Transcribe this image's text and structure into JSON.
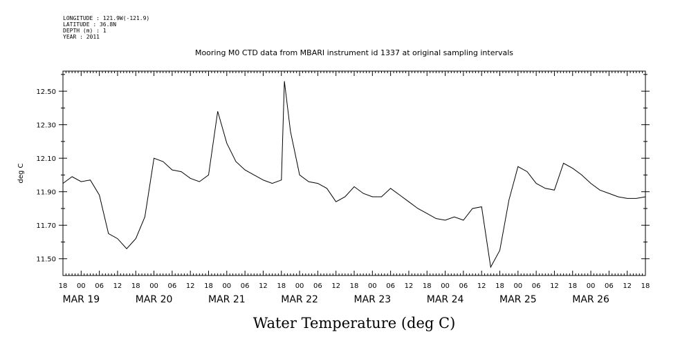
{
  "header": {
    "longitude": "LONGITUDE : 121.9W(-121.9)",
    "latitude": "LATITUDE : 36.8N",
    "depth": "DEPTH (m) : 1",
    "year": "YEAR : 2011"
  },
  "colors": {
    "line": "#000000",
    "background": "#ffffff"
  },
  "chart_data": {
    "type": "line",
    "title": "Mooring M0 CTD data from MBARI instrument id 1337 at original sampling intervals",
    "xlabel": "Water Temperature (deg C)",
    "ylabel": "deg C",
    "ylim": [
      11.4,
      12.62
    ],
    "xlim": [
      "2011-03-18T18:00",
      "2011-03-26T18:00"
    ],
    "y_ticks": [
      "11.50",
      "11.70",
      "11.90",
      "12.10",
      "12.30",
      "12.50"
    ],
    "x_tick_hours": [
      "18",
      "00",
      "06",
      "12",
      "18",
      "00",
      "06",
      "12",
      "18",
      "00",
      "06",
      "12",
      "18",
      "00",
      "06",
      "12",
      "18",
      "00",
      "06",
      "12",
      "18",
      "00",
      "06",
      "12",
      "18",
      "00",
      "06",
      "12",
      "18",
      "00",
      "06",
      "12",
      "18"
    ],
    "x_day_labels": [
      "MAR 19",
      "MAR 20",
      "MAR 21",
      "MAR 22",
      "MAR 23",
      "MAR 24",
      "MAR 25",
      "MAR 26"
    ],
    "grid": false,
    "series": [
      {
        "name": "",
        "x": [
          "2011-03-18T18:00",
          "2011-03-18T21:00",
          "2011-03-19T00:00",
          "2011-03-19T03:00",
          "2011-03-19T06:00",
          "2011-03-19T09:00",
          "2011-03-19T12:00",
          "2011-03-19T15:00",
          "2011-03-19T18:00",
          "2011-03-19T21:00",
          "2011-03-20T00:00",
          "2011-03-20T03:00",
          "2011-03-20T06:00",
          "2011-03-20T09:00",
          "2011-03-20T12:00",
          "2011-03-20T15:00",
          "2011-03-20T18:00",
          "2011-03-20T21:00",
          "2011-03-21T00:00",
          "2011-03-21T03:00",
          "2011-03-21T06:00",
          "2011-03-21T09:00",
          "2011-03-21T12:00",
          "2011-03-21T15:00",
          "2011-03-21T18:00",
          "2011-03-21T19:00",
          "2011-03-21T21:00",
          "2011-03-22T00:00",
          "2011-03-22T03:00",
          "2011-03-22T06:00",
          "2011-03-22T09:00",
          "2011-03-22T12:00",
          "2011-03-22T15:00",
          "2011-03-22T18:00",
          "2011-03-22T21:00",
          "2011-03-23T00:00",
          "2011-03-23T03:00",
          "2011-03-23T06:00",
          "2011-03-23T09:00",
          "2011-03-23T12:00",
          "2011-03-23T15:00",
          "2011-03-23T18:00",
          "2011-03-23T21:00",
          "2011-03-24T00:00",
          "2011-03-24T03:00",
          "2011-03-24T06:00",
          "2011-03-24T09:00",
          "2011-03-24T12:00",
          "2011-03-24T15:00",
          "2011-03-24T18:00",
          "2011-03-24T21:00",
          "2011-03-25T00:00",
          "2011-03-25T03:00",
          "2011-03-25T06:00",
          "2011-03-25T09:00",
          "2011-03-25T12:00",
          "2011-03-25T15:00",
          "2011-03-25T18:00",
          "2011-03-25T21:00",
          "2011-03-26T00:00",
          "2011-03-26T03:00",
          "2011-03-26T06:00",
          "2011-03-26T09:00",
          "2011-03-26T12:00",
          "2011-03-26T15:00",
          "2011-03-26T18:00"
        ],
        "y": [
          11.95,
          11.99,
          11.96,
          11.97,
          11.88,
          11.65,
          11.62,
          11.56,
          11.62,
          11.75,
          12.1,
          12.08,
          12.03,
          12.02,
          11.98,
          11.96,
          12.0,
          12.38,
          12.19,
          12.08,
          12.03,
          12.0,
          11.97,
          11.95,
          11.97,
          12.56,
          12.26,
          12.0,
          11.96,
          11.95,
          11.92,
          11.84,
          11.87,
          11.93,
          11.89,
          11.87,
          11.87,
          11.92,
          11.88,
          11.84,
          11.8,
          11.77,
          11.74,
          11.73,
          11.75,
          11.73,
          11.8,
          11.81,
          11.45,
          11.55,
          11.85,
          12.05,
          12.02,
          11.95,
          11.92,
          11.91,
          12.07,
          12.04,
          12.0,
          11.95,
          11.91,
          11.89,
          11.87,
          11.86,
          11.86,
          11.87
        ]
      }
    ]
  }
}
